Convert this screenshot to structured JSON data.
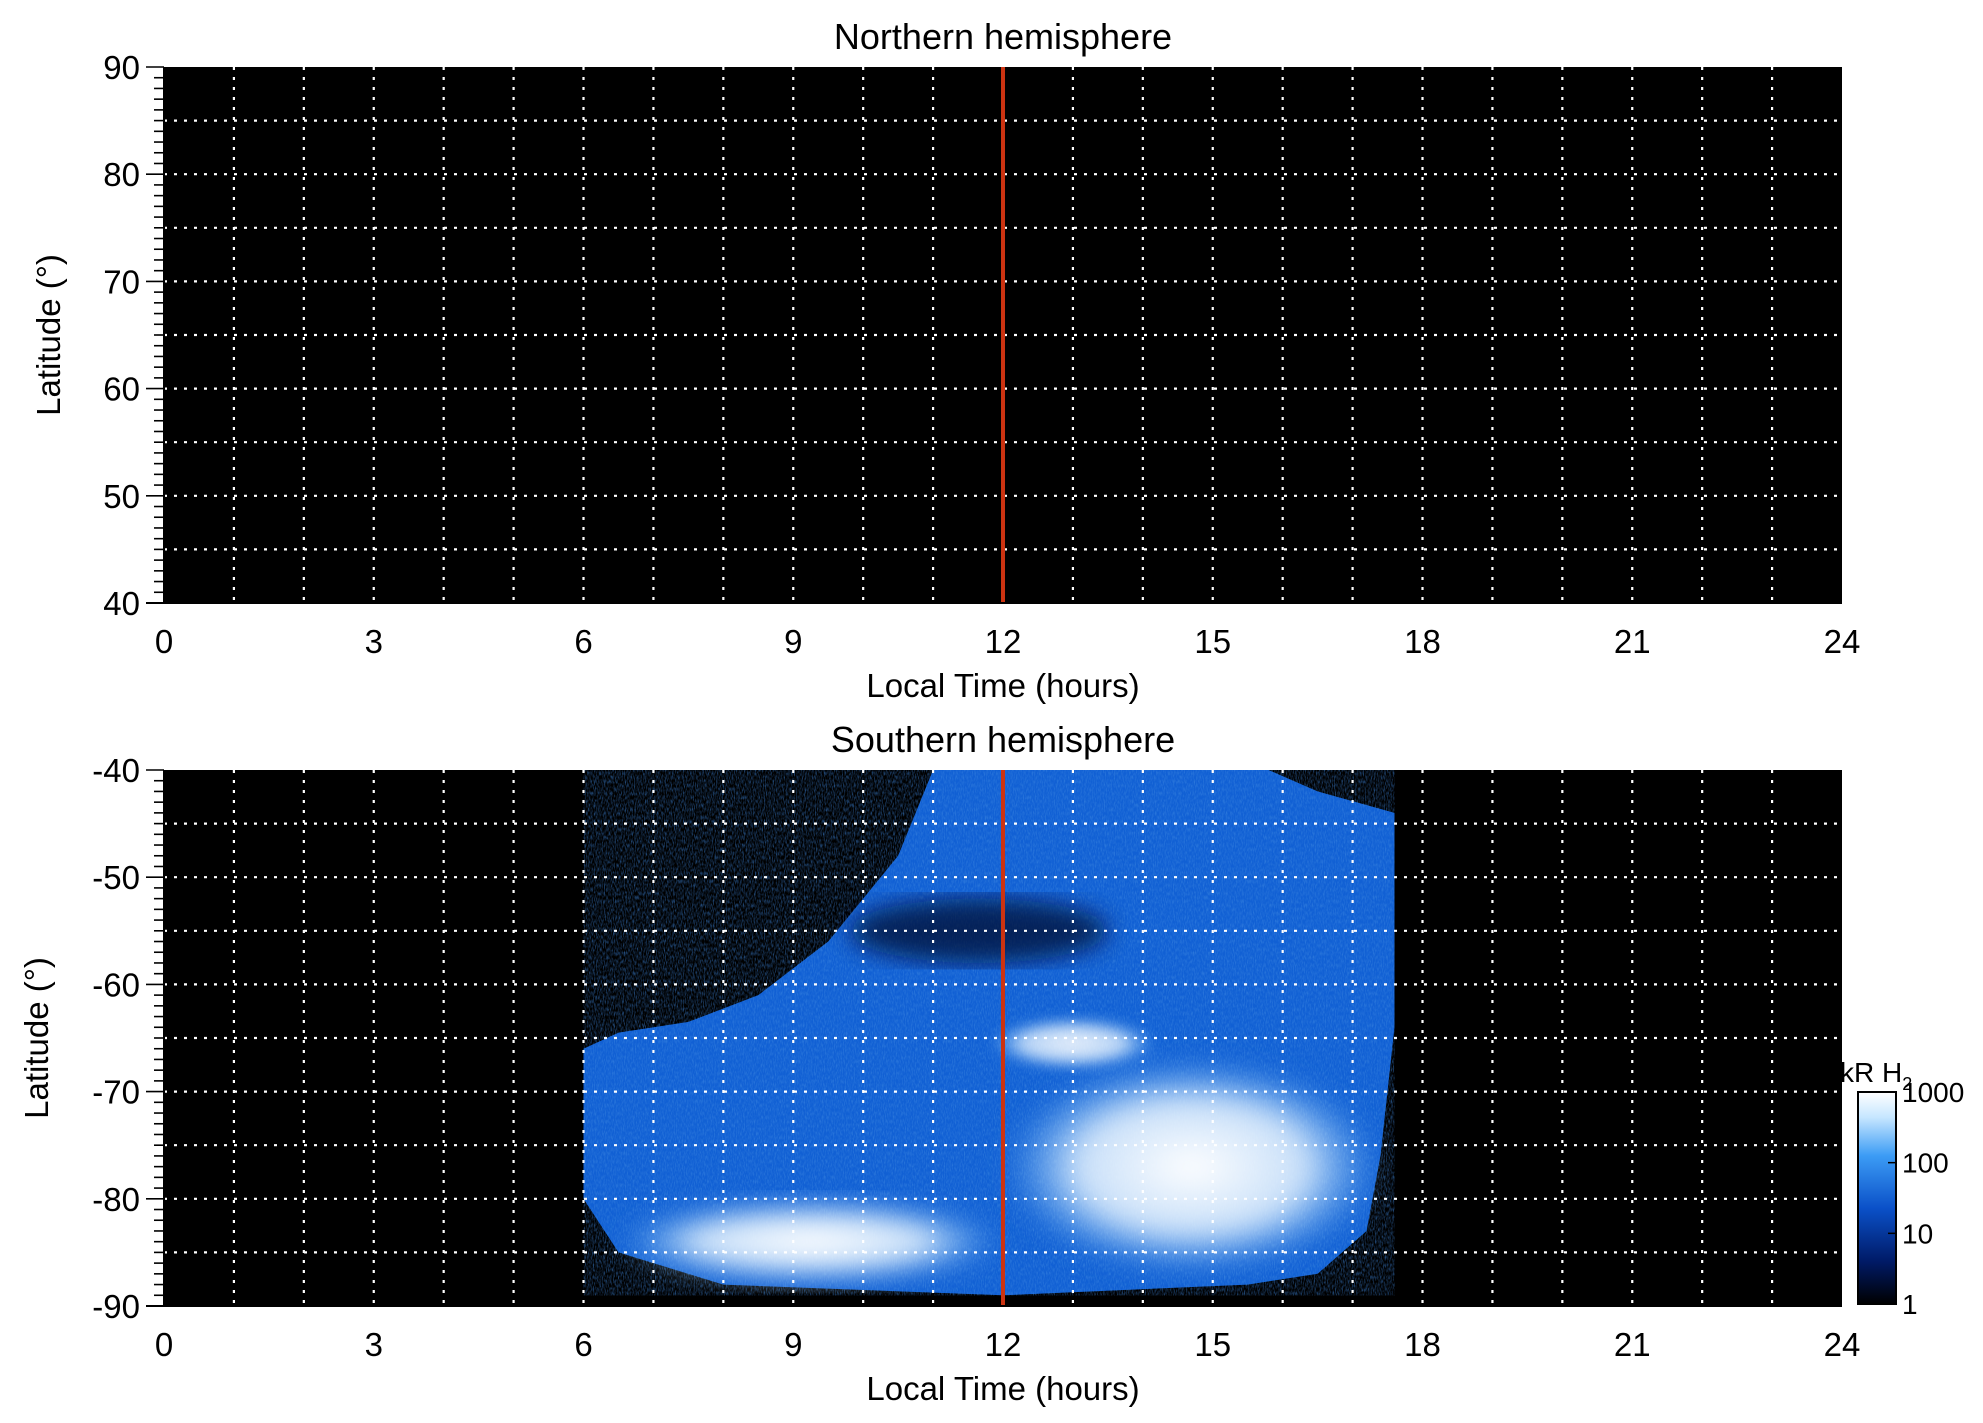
{
  "chart_data": [
    {
      "type": "heatmap",
      "title": "Northern hemisphere",
      "xlabel": "Local Time (hours)",
      "ylabel": "Latitude (°)",
      "xlim": [
        0,
        24
      ],
      "ylim": [
        40,
        90
      ],
      "x_ticks": [
        0,
        3,
        6,
        9,
        12,
        15,
        18,
        21,
        24
      ],
      "y_ticks": [
        40,
        50,
        60,
        70,
        80,
        90
      ],
      "grid": true,
      "grid_style": "white dotted",
      "background": "#000000",
      "reference_line": {
        "x": 12,
        "color": "#cc3311"
      },
      "emission": "none"
    },
    {
      "type": "heatmap",
      "title": "Southern hemisphere",
      "xlabel": "Local Time (hours)",
      "ylabel": "Latitude (°)",
      "xlim": [
        0,
        24
      ],
      "ylim": [
        -90,
        -40
      ],
      "x_ticks": [
        0,
        3,
        6,
        9,
        12,
        15,
        18,
        21,
        24
      ],
      "y_ticks": [
        -40,
        -50,
        -60,
        -70,
        -80,
        -90
      ],
      "grid": true,
      "grid_style": "white dotted",
      "background": "#000000",
      "reference_line": {
        "x": 12,
        "color": "#cc3311"
      },
      "coverage_boundary": [
        {
          "x": 6.0,
          "y": -66
        },
        {
          "x": 6.5,
          "y": -64.5
        },
        {
          "x": 7.5,
          "y": -63.5
        },
        {
          "x": 8.5,
          "y": -61
        },
        {
          "x": 9.5,
          "y": -56
        },
        {
          "x": 10.5,
          "y": -48
        },
        {
          "x": 11.0,
          "y": -40
        },
        {
          "x": 15.8,
          "y": -40
        },
        {
          "x": 16.5,
          "y": -42
        },
        {
          "x": 17.6,
          "y": -44
        },
        {
          "x": 17.6,
          "y": -64
        },
        {
          "x": 17.4,
          "y": -76
        },
        {
          "x": 17.2,
          "y": -83
        },
        {
          "x": 16.5,
          "y": -87
        },
        {
          "x": 15.5,
          "y": -88
        },
        {
          "x": 12.0,
          "y": -89
        },
        {
          "x": 8.0,
          "y": -88
        },
        {
          "x": 6.5,
          "y": -85
        },
        {
          "x": 6.0,
          "y": -80
        }
      ],
      "bright_regions": [
        {
          "x0": 6.5,
          "x1": 12.0,
          "y0": -88,
          "y1": -80,
          "intensity": 1000
        },
        {
          "x0": 12.0,
          "x1": 17.4,
          "y0": -87,
          "y1": -67,
          "intensity": 1000
        },
        {
          "x0": 11.8,
          "x1": 14.2,
          "y0": -68,
          "y1": -63,
          "intensity": 400
        },
        {
          "x0": 9.8,
          "x1": 13.5,
          "y0": -58,
          "y1": -52,
          "intensity": 8
        }
      ]
    }
  ],
  "colorbar": {
    "label": "kR H",
    "label_sub": "2",
    "ticks": [
      "1000",
      "100",
      "10",
      "1"
    ],
    "scale": "log",
    "range": [
      1,
      1000
    ],
    "colors": [
      "#000000",
      "#001a66",
      "#0a50c8",
      "#3c9cf5",
      "#c6e6ff",
      "#ffffff"
    ]
  }
}
